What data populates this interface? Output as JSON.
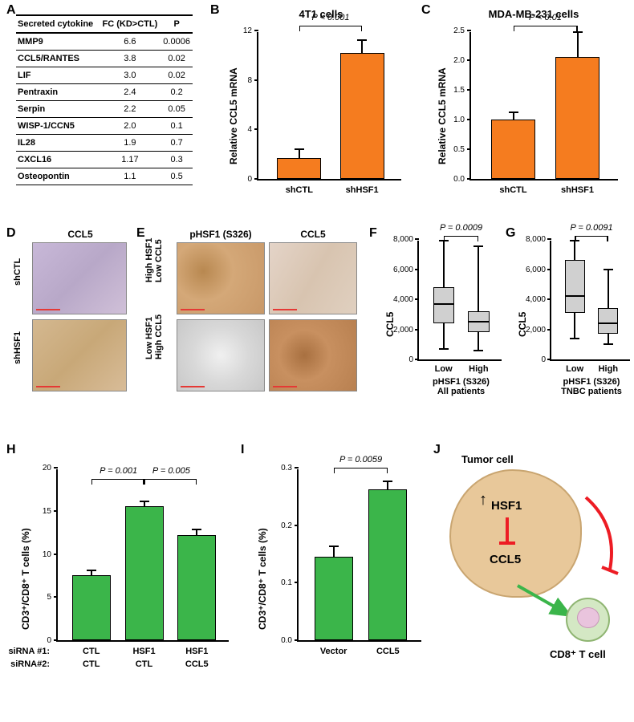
{
  "colors": {
    "orange": "#f57c1f",
    "green": "#3bb54a",
    "box_fill": "#d0d0d0",
    "tumor_fill": "#e8c89a",
    "tumor_border": "#c9a570",
    "tcell_fill": "#d4e8c4",
    "tcell_border": "#8fb572",
    "nucleus_fill": "#e9c4dd",
    "red_arrow": "#ed1c24",
    "green_arrow": "#3bb54a"
  },
  "panelA": {
    "label": "A",
    "headers": [
      "Secreted cytokine",
      "FC (KD>CTL)",
      "P"
    ],
    "rows": [
      [
        "MMP9",
        "6.6",
        "0.0006"
      ],
      [
        "CCL5/RANTES",
        "3.8",
        "0.02"
      ],
      [
        "LIF",
        "3.0",
        "0.02"
      ],
      [
        "Pentraxin",
        "2.4",
        "0.2"
      ],
      [
        "Serpin",
        "2.2",
        "0.05"
      ],
      [
        "WISP-1/CCN5",
        "2.0",
        "0.1"
      ],
      [
        "IL28",
        "1.9",
        "0.7"
      ],
      [
        "CXCL16",
        "1.17",
        "0.3"
      ],
      [
        "Osteopontin",
        "1.1",
        "0.5"
      ]
    ]
  },
  "panelB": {
    "label": "B",
    "title": "4T1 cells",
    "ylabel": "Relative CCL5 mRNA",
    "ylim": [
      0,
      12
    ],
    "ytick_step": 4,
    "categories": [
      "shCTL",
      "shHSF1"
    ],
    "values": [
      1.7,
      10.2
    ],
    "errors": [
      0.7,
      1.0
    ],
    "bar_color": "#f57c1f",
    "pval": "P < 0.001"
  },
  "panelC": {
    "label": "C",
    "title": "MDA-MB-231 cells",
    "ylabel": "Relative CCL5 mRNA",
    "ylim": [
      0,
      2.5
    ],
    "ytick_step": 0.5,
    "categories": [
      "shCTL",
      "shHSF1"
    ],
    "values": [
      1.0,
      2.05
    ],
    "errors": [
      0.12,
      0.42
    ],
    "bar_color": "#f57c1f",
    "pval": "P < 0.01"
  },
  "panelD": {
    "label": "D",
    "top_label": "CCL5",
    "rows": [
      "shCTL",
      "shHSF1"
    ]
  },
  "panelE": {
    "label": "E",
    "top_labels": [
      "pHSF1 (S326)",
      "CCL5"
    ],
    "rows": [
      "High HSF1\nLow CCL5",
      "Low HSF1\nHigh CCL5"
    ]
  },
  "panelF": {
    "label": "F",
    "ylabel": "CCL5",
    "xlabel": "pHSF1 (S326)\nAll patients",
    "ylim": [
      0,
      8000
    ],
    "ytick_step": 2000,
    "categories": [
      "Low",
      "High"
    ],
    "pval": "P = 0.0009",
    "boxes": [
      {
        "min": 700,
        "q1": 2400,
        "median": 3700,
        "q3": 4800,
        "max": 7900
      },
      {
        "min": 600,
        "q1": 1800,
        "median": 2500,
        "q3": 3200,
        "max": 7500
      }
    ]
  },
  "panelG": {
    "label": "G",
    "ylabel": "CCL5",
    "xlabel": "pHSF1 (S326)\nTNBC patients",
    "ylim": [
      0,
      8000
    ],
    "ytick_step": 2000,
    "categories": [
      "Low",
      "High"
    ],
    "pval": "P = 0.0091",
    "boxes": [
      {
        "min": 1400,
        "q1": 3100,
        "median": 4200,
        "q3": 6600,
        "max": 7900
      },
      {
        "min": 1000,
        "q1": 1700,
        "median": 2400,
        "q3": 3400,
        "max": 6000
      }
    ]
  },
  "panelH": {
    "label": "H",
    "ylabel": "CD3⁺/CD8⁺ T cells (%)",
    "ylim": [
      0,
      20
    ],
    "ytick_step": 5,
    "xgroups": {
      "siRNA1_label": "siRNA #1:",
      "siRNA2_label": "siRNA#2:",
      "cols": [
        {
          "r1": "CTL",
          "r2": "CTL"
        },
        {
          "r1": "HSF1",
          "r2": "CTL"
        },
        {
          "r1": "HSF1",
          "r2": "CCL5"
        }
      ]
    },
    "values": [
      7.5,
      15.5,
      12.2
    ],
    "errors": [
      0.6,
      0.6,
      0.6
    ],
    "bar_color": "#3bb54a",
    "pvals": [
      "P = 0.001",
      "P = 0.005"
    ]
  },
  "panelI": {
    "label": "I",
    "ylabel": "CD3⁺/CD8⁺ T cells (%)",
    "ylim": [
      0,
      0.3
    ],
    "ytick_step": 0.1,
    "categories": [
      "Vector",
      "CCL5"
    ],
    "values": [
      0.145,
      0.262
    ],
    "errors": [
      0.018,
      0.014
    ],
    "bar_color": "#3bb54a",
    "pval": "P = 0.0059"
  },
  "panelJ": {
    "label": "J",
    "tumor_label": "Tumor cell",
    "hsf1": "HSF1",
    "ccl5": "CCL5",
    "tcell_label": "CD8⁺ T cell"
  }
}
